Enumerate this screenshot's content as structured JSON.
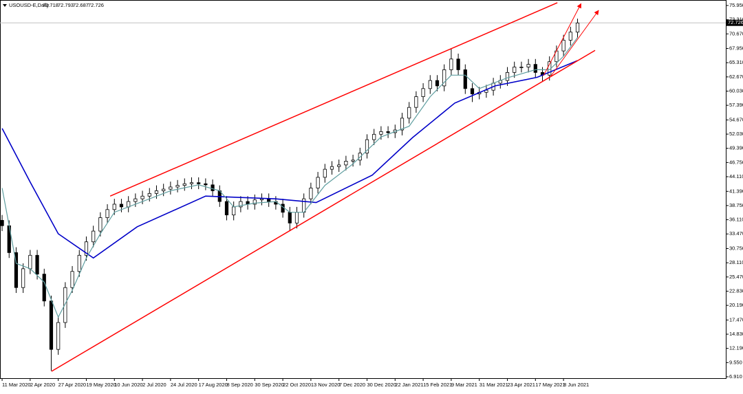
{
  "chart_data": {
    "type": "candlestick",
    "symbol": "USOUSD-E,Daily",
    "ohlc_header": [
      72.718,
      72.793,
      72.687,
      72.726
    ],
    "current_price": 72.726,
    "x": [
      0,
      4,
      8,
      12,
      16,
      20,
      24,
      28,
      32,
      36,
      40,
      44,
      48,
      52,
      56,
      60,
      64,
      68,
      72,
      76,
      80,
      84,
      88,
      92,
      96,
      100,
      104,
      108,
      112,
      116,
      120,
      124,
      128,
      132,
      136,
      140,
      144,
      148,
      152,
      156,
      160,
      164,
      168,
      172,
      176,
      180,
      184,
      188,
      192,
      196,
      200,
      204,
      208,
      212,
      216,
      220,
      224,
      228,
      232,
      236,
      240,
      244,
      248,
      252,
      256,
      260,
      264,
      268,
      272,
      276,
      280,
      284,
      288,
      292,
      296,
      300,
      304,
      308,
      312,
      316,
      320,
      324,
      328
    ],
    "open": [
      36,
      35,
      30,
      23.5,
      27,
      29.5,
      26,
      21,
      12,
      17,
      23.5,
      26.5,
      29.5,
      32,
      34,
      36.5,
      38,
      39,
      38.5,
      39.5,
      40,
      40.5,
      41,
      41.5,
      41.8,
      42.2,
      42.5,
      42.8,
      43,
      42.8,
      42.6,
      41.5,
      39.5,
      37,
      38.5,
      39.5,
      39,
      39.8,
      40,
      39.5,
      39,
      37.5,
      35.5,
      37.5,
      40,
      42,
      44,
      45.5,
      46,
      46.3,
      47,
      47.2,
      48.5,
      51,
      52,
      52.5,
      52.3,
      52.8,
      55,
      57,
      59,
      60.5,
      62,
      61,
      64,
      66,
      64,
      60.5,
      59.5,
      59.8,
      60.2,
      61.5,
      62,
      63.5,
      64.5,
      64.5,
      65,
      63.5,
      63,
      65.5,
      67.5,
      69.5,
      71
    ],
    "high": [
      37,
      36,
      31,
      28,
      30.5,
      30.5,
      27,
      22,
      18,
      24.5,
      27.5,
      30.5,
      33,
      35,
      37.5,
      39,
      40,
      40,
      40.5,
      41,
      41.5,
      42,
      42.5,
      42.8,
      43.2,
      43.5,
      43.8,
      44,
      44,
      43.8,
      43.6,
      42.5,
      40.5,
      39.5,
      40.5,
      40.5,
      40.8,
      41,
      41,
      40.5,
      40,
      38.5,
      38.5,
      41,
      43,
      45,
      46.5,
      47,
      47.3,
      48,
      48.2,
      49.5,
      52,
      53,
      53.5,
      53.5,
      53.8,
      56,
      58,
      60,
      61.5,
      63,
      63,
      65,
      68,
      67,
      65,
      61.5,
      60.8,
      61.2,
      62.5,
      63,
      64.5,
      65.5,
      65.5,
      66,
      66,
      64.5,
      66.5,
      68.5,
      70.5,
      72,
      73.5
    ],
    "low": [
      34,
      29,
      22.5,
      22.5,
      26,
      25,
      20,
      8,
      11,
      16,
      22.5,
      25.5,
      28.5,
      31,
      33,
      35.5,
      37,
      37.5,
      37.5,
      38.5,
      39,
      39.5,
      40,
      40.5,
      40.8,
      41.2,
      41.5,
      41.8,
      41.8,
      41.6,
      40.5,
      38.5,
      36,
      36,
      37.5,
      38,
      38,
      38.8,
      38.5,
      38,
      36.5,
      34,
      34.5,
      36.5,
      39,
      41,
      43,
      44.5,
      45,
      45.3,
      46,
      46.2,
      47.5,
      50,
      51,
      51.3,
      51.3,
      51.8,
      54,
      56,
      58,
      59.5,
      60,
      60,
      63,
      63,
      59.5,
      58,
      58.5,
      58.8,
      59.2,
      60.5,
      61,
      62.5,
      63.5,
      63.5,
      62.5,
      61.8,
      62,
      64.5,
      66.5,
      68.5,
      70
    ],
    "close": [
      35,
      30,
      23.5,
      27,
      29.5,
      26,
      21,
      12,
      17,
      23.5,
      26.5,
      29.5,
      32,
      34,
      36.5,
      38,
      39,
      38.5,
      39.5,
      40,
      40.5,
      41,
      41.5,
      41.8,
      42.2,
      42.5,
      42.8,
      43,
      42.8,
      42.6,
      41.5,
      39.5,
      37,
      38.5,
      39.5,
      39,
      39.8,
      40,
      39.5,
      39,
      37.5,
      35.5,
      37.5,
      40,
      42,
      44,
      45.5,
      46,
      46.3,
      47,
      47.2,
      48.5,
      51,
      52,
      52.5,
      52.3,
      52.8,
      55,
      57,
      59,
      60.5,
      62,
      61,
      64,
      66,
      64,
      60.5,
      59.5,
      59.8,
      60.2,
      61.5,
      62,
      63.5,
      64.5,
      64.5,
      65,
      63.5,
      63,
      65.5,
      67.5,
      69.5,
      71,
      72.7
    ],
    "lines": [
      {
        "color": "#0000c8",
        "x": [
          0,
          16,
          32,
          52,
          77,
          116,
          156,
          179,
          211,
          234,
          258,
          281,
          305,
          328
        ],
        "values": [
          53.1,
          43.1,
          33.5,
          29.0,
          34.8,
          40.5,
          40.0,
          39.3,
          44.4,
          51.4,
          57.8,
          61.0,
          62.6,
          65.7
        ]
      },
      {
        "color": "#5f9ea0",
        "x": [
          0,
          8,
          16,
          24,
          32,
          40,
          48,
          56,
          64,
          80,
          96,
          112,
          124,
          132,
          144,
          156,
          164,
          172,
          184,
          200,
          216,
          232,
          244,
          256,
          264,
          272,
          288,
          304,
          312,
          320,
          328
        ],
        "values": [
          42,
          28,
          27,
          24.5,
          18,
          23,
          29,
          33.5,
          37.5,
          39.5,
          41.5,
          42.6,
          41.5,
          38.5,
          39.2,
          39.5,
          37.5,
          37.5,
          42.5,
          46.5,
          51.5,
          53.5,
          59,
          63,
          63,
          60.5,
          62.5,
          64,
          64,
          66.5,
          70
        ]
      }
    ],
    "drawings": [
      {
        "color": "#ff0000",
        "arrow": false,
        "x": [
          28.2,
          338
        ],
        "y": [
          7.93,
          67.6
        ]
      },
      {
        "color": "#ff0000",
        "arrow": false,
        "x": [
          61.6,
          316.5
        ],
        "y": [
          40.5,
          76.46
        ]
      },
      {
        "color": "#ff0000",
        "arrow": true,
        "x": [
          308.6,
          330
        ],
        "y": [
          62.9,
          76.3
        ]
      },
      {
        "color": "#ff0000",
        "arrow": true,
        "x": [
          312.5,
          340
        ],
        "y": [
          62.7,
          75.05
        ]
      }
    ],
    "xlim": [
      -1.2,
      412.5
    ],
    "ylim": [
      6.65,
      76.97
    ],
    "xticks": [
      {
        "value": 0,
        "label": "11 Mar 2020"
      },
      {
        "value": 16,
        "label": "2 Apr 2020"
      },
      {
        "value": 32,
        "label": "27 Apr 2020"
      },
      {
        "value": 48,
        "label": "19 May 2020"
      },
      {
        "value": 64,
        "label": "10 Jun 2020"
      },
      {
        "value": 80,
        "label": "2 Jul 2020"
      },
      {
        "value": 96,
        "label": "24 Jul 2020"
      },
      {
        "value": 112,
        "label": "17 Aug 2020"
      },
      {
        "value": 128,
        "label": "8 Sep 2020"
      },
      {
        "value": 144,
        "label": "30 Sep 2020"
      },
      {
        "value": 160,
        "label": "22 Oct 2020"
      },
      {
        "value": 176,
        "label": "13 Nov 2020"
      },
      {
        "value": 192,
        "label": "7 Dec 2020"
      },
      {
        "value": 208,
        "label": "30 Dec 2020"
      },
      {
        "value": 224,
        "label": "22 Jan 2021"
      },
      {
        "value": 240,
        "label": "15 Feb 2021"
      },
      {
        "value": 256,
        "label": "9 Mar 2021"
      },
      {
        "value": 272,
        "label": "31 Mar 2021"
      },
      {
        "value": 288,
        "label": "23 Apr 2021"
      },
      {
        "value": 304,
        "label": "17 May 2021"
      },
      {
        "value": 320,
        "label": "8 Jun 2021"
      }
    ],
    "yticks": [
      {
        "value": 75.95,
        "label": "75.950"
      },
      {
        "value": 73.31,
        "label": "73.310"
      },
      {
        "value": 70.67,
        "label": "70.670"
      },
      {
        "value": 67.95,
        "label": "67.950"
      },
      {
        "value": 65.31,
        "label": "65.310"
      },
      {
        "value": 62.67,
        "label": "62.670"
      },
      {
        "value": 60.03,
        "label": "60.030"
      },
      {
        "value": 57.39,
        "label": "57.390"
      },
      {
        "value": 54.67,
        "label": "54.670"
      },
      {
        "value": 52.03,
        "label": "52.030"
      },
      {
        "value": 49.39,
        "label": "49.390"
      },
      {
        "value": 46.75,
        "label": "46.750"
      },
      {
        "value": 44.11,
        "label": "44.110"
      },
      {
        "value": 41.39,
        "label": "41.390"
      },
      {
        "value": 38.75,
        "label": "38.750"
      },
      {
        "value": 36.11,
        "label": "36.110"
      },
      {
        "value": 33.47,
        "label": "33.470"
      },
      {
        "value": 30.75,
        "label": "30.750"
      },
      {
        "value": 28.11,
        "label": "28.110"
      },
      {
        "value": 25.47,
        "label": "25.470"
      },
      {
        "value": 22.83,
        "label": "22.830"
      },
      {
        "value": 20.19,
        "label": "20.190"
      },
      {
        "value": 17.47,
        "label": "17.470"
      },
      {
        "value": 14.83,
        "label": "14.830"
      },
      {
        "value": 12.19,
        "label": "12.190"
      },
      {
        "value": 9.55,
        "label": "9.550"
      },
      {
        "value": 6.91,
        "label": "6.910"
      }
    ]
  }
}
